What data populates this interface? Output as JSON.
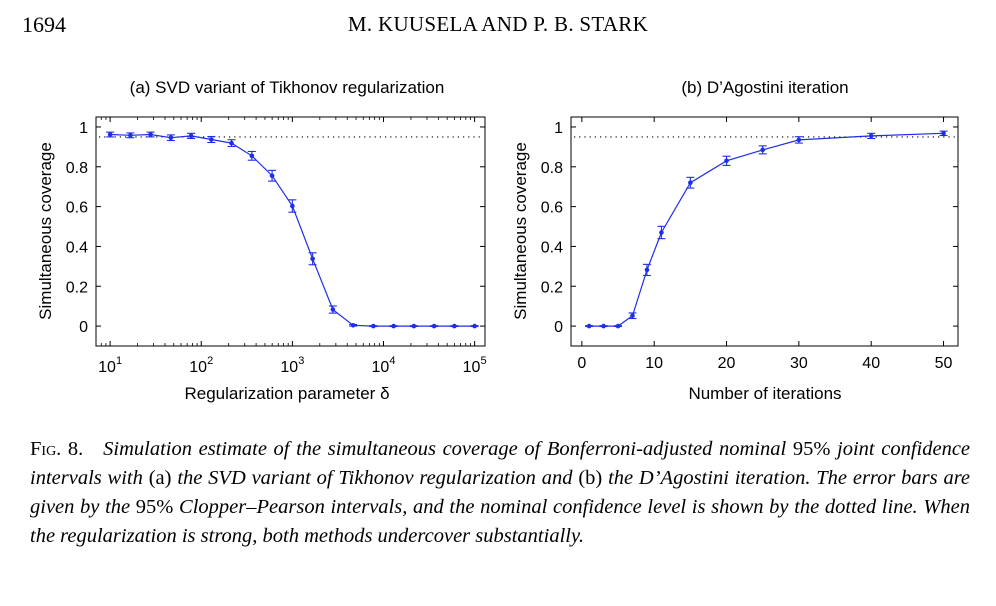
{
  "header": {
    "page_number": "1694",
    "running_head": "M. KUUSELA AND P. B. STARK"
  },
  "chart_data": [
    {
      "type": "line",
      "title": "(a) SVD variant of Tikhonov regularization",
      "xlabel": "Regularization parameter δ",
      "ylabel": "Simultaneous coverage",
      "x_scale": "log",
      "xlim": [
        7,
        130000
      ],
      "ylim": [
        -0.1,
        1.05
      ],
      "x_ticks": [
        {
          "value": 10,
          "base": "10",
          "exp": "1"
        },
        {
          "value": 100,
          "base": "10",
          "exp": "2"
        },
        {
          "value": 1000,
          "base": "10",
          "exp": "3"
        },
        {
          "value": 10000,
          "base": "10",
          "exp": "4"
        },
        {
          "value": 100000,
          "base": "10",
          "exp": "5"
        }
      ],
      "y_ticks": [
        0,
        0.2,
        0.4,
        0.6,
        0.8,
        1
      ],
      "y_tick_labels": [
        "0",
        "0.2",
        "0.4",
        "0.6",
        "0.8",
        "1"
      ],
      "nominal_level": 0.95,
      "series": [
        {
          "color": "#1f2ee8",
          "x": [
            10,
            16.7,
            27.8,
            46.4,
            77.4,
            129,
            215,
            359,
            599,
            1000,
            1668,
            2783,
            4642,
            7743,
            12915,
            21544,
            35938,
            59948,
            100000
          ],
          "y": [
            0.962,
            0.958,
            0.962,
            0.946,
            0.955,
            0.937,
            0.919,
            0.855,
            0.755,
            0.603,
            0.338,
            0.083,
            0.004,
            0.0,
            0.0,
            0.0,
            0.0,
            0.0,
            0.0
          ],
          "err": [
            0.012,
            0.012,
            0.012,
            0.014,
            0.013,
            0.015,
            0.017,
            0.022,
            0.027,
            0.031,
            0.03,
            0.018,
            0.004,
            0.002,
            0.002,
            0.002,
            0.002,
            0.002,
            0.002
          ]
        }
      ]
    },
    {
      "type": "line",
      "title": "(b) D’Agostini iteration",
      "xlabel": "Number of iterations",
      "ylabel": "Simultaneous coverage",
      "x_scale": "linear",
      "xlim": [
        -1.5,
        52
      ],
      "ylim": [
        -0.1,
        1.05
      ],
      "x_ticks": [
        0,
        10,
        20,
        30,
        40,
        50
      ],
      "x_tick_labels": [
        "0",
        "10",
        "20",
        "30",
        "40",
        "50"
      ],
      "y_ticks": [
        0,
        0.2,
        0.4,
        0.6,
        0.8,
        1
      ],
      "y_tick_labels": [
        "0",
        "0.2",
        "0.4",
        "0.6",
        "0.8",
        "1"
      ],
      "nominal_level": 0.95,
      "series": [
        {
          "color": "#1f2ee8",
          "x": [
            1,
            3,
            5,
            7,
            9,
            11,
            15,
            20,
            25,
            30,
            40,
            50
          ],
          "y": [
            0.0,
            0.0,
            0.0,
            0.052,
            0.282,
            0.47,
            0.72,
            0.83,
            0.885,
            0.935,
            0.955,
            0.968
          ],
          "err": [
            0.002,
            0.002,
            0.002,
            0.014,
            0.028,
            0.031,
            0.027,
            0.023,
            0.02,
            0.016,
            0.013,
            0.011
          ]
        }
      ]
    }
  ],
  "caption": {
    "lead": "Fig. 8.",
    "t1": "Simulation estimate of the simultaneous coverage of Bonferroni-adjusted nominal",
    "pct": "95%",
    "t2": "joint confidence intervals with",
    "a": "(a)",
    "t3": "the SVD variant of Tikhonov regularization and",
    "b": "(b)",
    "t4": "the D’Agostini iteration. The error bars are given by the",
    "pct2": "95%",
    "t5": "Clopper–Pearson intervals, and the nominal confidence level is shown by the dotted line. When the regularization is strong, both methods undercover substantially."
  }
}
